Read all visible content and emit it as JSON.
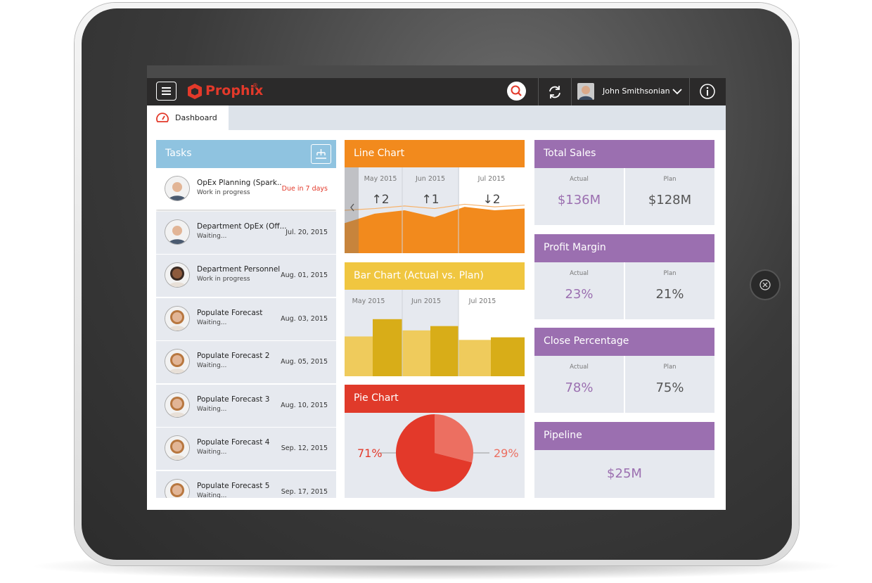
{
  "header": {
    "brand": "Prophix",
    "brand_mark": "®",
    "user": "John Smithsonian"
  },
  "tabs": [
    "Dashboard"
  ],
  "tasks": {
    "title": "Tasks",
    "items": [
      {
        "name": "OpEx Planning (Spark..",
        "status": "Work in progress",
        "due": "Due in 7 days"
      },
      {
        "name": "Department OpEx (Off...",
        "status": "Waiting...",
        "due": "Jul. 20, 2015"
      },
      {
        "name": "Department Personnel",
        "status": "Work in progress",
        "due": "Aug. 01, 2015"
      },
      {
        "name": "Populate Forecast",
        "status": "Waiting...",
        "due": "Aug. 03, 2015"
      },
      {
        "name": "Populate Forecast 2",
        "status": "Waiting...",
        "due": "Aug. 05, 2015"
      },
      {
        "name": "Populate Forecast 3",
        "status": "Waiting...",
        "due": "Aug. 10, 2015"
      },
      {
        "name": "Populate Forecast 4",
        "status": "Waiting...",
        "due": "Sep. 12, 2015"
      },
      {
        "name": "Populate Forecast 5",
        "status": "Waiting...",
        "due": "Sep. 17, 2015"
      }
    ]
  },
  "line_chart": {
    "title": "Line Chart",
    "months": [
      "May 2015",
      "Jun 2015",
      "Jul 2015"
    ],
    "changes": [
      "↑2",
      "↑1",
      "↓2"
    ],
    "area_values": [
      35,
      46,
      50,
      42,
      54,
      50,
      52
    ],
    "line_values": [
      50,
      52,
      55,
      52,
      57,
      54,
      56
    ],
    "ylim": [
      0,
      100
    ],
    "color": "#f28a1d"
  },
  "bar_chart": {
    "title": "Bar Chart (Actual vs. Plan)",
    "months": [
      "May 2015",
      "Jun 2015",
      "Jul 2015"
    ],
    "actual_values": [
      46,
      53,
      42
    ],
    "plan_values": [
      66,
      58,
      45
    ],
    "ylim": [
      0,
      100
    ],
    "actual_color": "#efcb5c",
    "plan_color": "#d8ad18"
  },
  "pie_chart": {
    "title": "Pie Chart",
    "values": [
      71,
      29
    ],
    "value_labels": [
      "71%",
      "29%"
    ],
    "colors": [
      "#e3392a",
      "#ec6f61"
    ]
  },
  "kpis": [
    {
      "title": "Total Sales",
      "actual_label": "Actual",
      "actual": "$136M",
      "plan_label": "Plan",
      "plan": "$128M"
    },
    {
      "title": "Profit Margin",
      "actual_label": "Actual",
      "actual": "23%",
      "plan_label": "Plan",
      "plan": "21%"
    },
    {
      "title": "Close Percentage",
      "actual_label": "Actual",
      "actual": "78%",
      "plan_label": "Plan",
      "plan": "75%"
    },
    {
      "title": "Pipeline",
      "value": "$25M"
    }
  ]
}
